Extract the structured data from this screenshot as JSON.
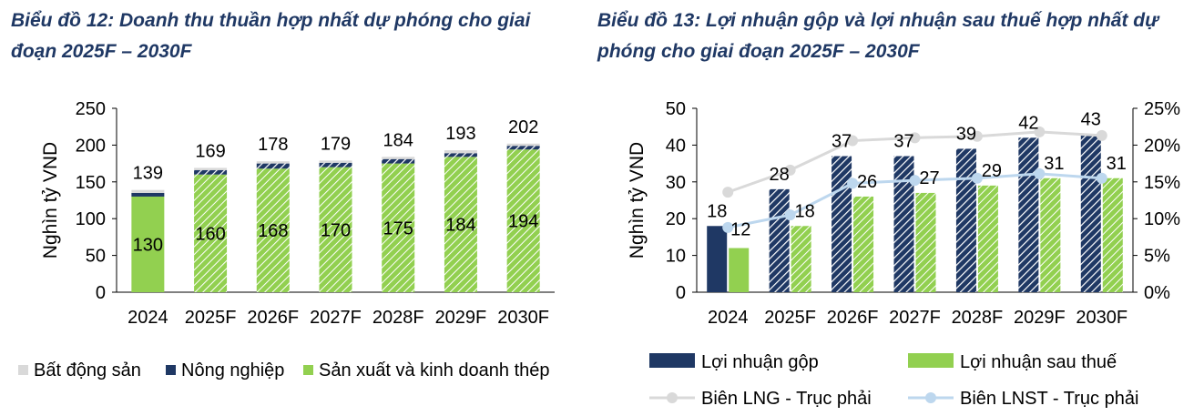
{
  "chart_data": [
    {
      "type": "bar",
      "stacked": true,
      "title": "Biểu đồ 12: Doanh thu thuần hợp nhất dự phóng cho giai đoạn 2025F – 2030F",
      "ylabel": "Nghìn tỷ VND",
      "ylim": [
        0,
        250
      ],
      "yticks": [
        "250",
        "200",
        "150",
        "100",
        "50",
        "0"
      ],
      "categories": [
        "2024",
        "2025F",
        "2026F",
        "2027F",
        "2028F",
        "2029F",
        "2030F"
      ],
      "series": [
        {
          "name": "Sản xuất và kinh doanh thép",
          "values": [
            130,
            160,
            168,
            170,
            175,
            184,
            194
          ],
          "color": "#92d050"
        },
        {
          "name": "Nông nghiệp",
          "values": [
            5,
            6,
            7,
            6,
            6,
            5,
            5
          ],
          "color": "#1f3864"
        },
        {
          "name": "Bất động sản",
          "values": [
            4,
            3,
            3,
            3,
            3,
            4,
            3
          ],
          "color": "#d9d9d9"
        }
      ],
      "inner_labels": [
        "130",
        "160",
        "168",
        "170",
        "175",
        "184",
        "194"
      ],
      "total_labels": [
        "139",
        "169",
        "178",
        "179",
        "184",
        "193",
        "202"
      ],
      "legend": [
        "Bất động sản",
        "Nông nghiệp",
        "Sản xuất và kinh doanh thép"
      ],
      "legend_position": "bottom",
      "grid": false
    },
    {
      "type": "bar",
      "combo": "bar+line",
      "title": "Biểu đồ 13: Lợi nhuận gộp và lợi nhuận sau thuế hợp nhất dự phóng cho giai đoạn 2025F – 2030F",
      "ylabel": "Nghìn tỷ VND",
      "ylim": [
        0,
        50
      ],
      "y2lim": [
        0,
        25
      ],
      "yticks": [
        "50",
        "40",
        "30",
        "20",
        "10",
        "0"
      ],
      "y2ticks": [
        "25%",
        "20%",
        "15%",
        "10%",
        "5%",
        "0%"
      ],
      "categories": [
        "2024",
        "2025F",
        "2026F",
        "2027F",
        "2028F",
        "2029F",
        "2030F"
      ],
      "series": [
        {
          "name": "Lợi nhuận gộp",
          "values": [
            18,
            28,
            37,
            37,
            39,
            42,
            43
          ],
          "labels": [
            "18",
            "28",
            "37",
            "37",
            "39",
            "42",
            "43"
          ],
          "color": "#1f3864"
        },
        {
          "name": "Lợi nhuận sau thuế",
          "values": [
            12,
            18,
            26,
            27,
            29,
            31,
            31
          ],
          "labels": [
            "12",
            "18",
            "26",
            "27",
            "29",
            "31",
            "31"
          ],
          "color": "#92d050"
        },
        {
          "name": "Biên LNG - Trục phải",
          "values": [
            13.6,
            16.6,
            20.6,
            21.0,
            21.2,
            21.8,
            21.3
          ],
          "axis": "right",
          "color": "#d9d9d9"
        },
        {
          "name": "Biên LNST - Trục phải",
          "values": [
            8.8,
            10.5,
            14.8,
            15.2,
            15.5,
            16.1,
            15.5
          ],
          "axis": "right",
          "color": "#bdd7ee"
        }
      ],
      "legend": [
        "Lợi nhuận gộp",
        "Lợi nhuận sau thuế",
        "Biên LNG - Trục phải",
        "Biên LNST - Trục phải"
      ],
      "legend_position": "bottom",
      "grid": false
    }
  ]
}
